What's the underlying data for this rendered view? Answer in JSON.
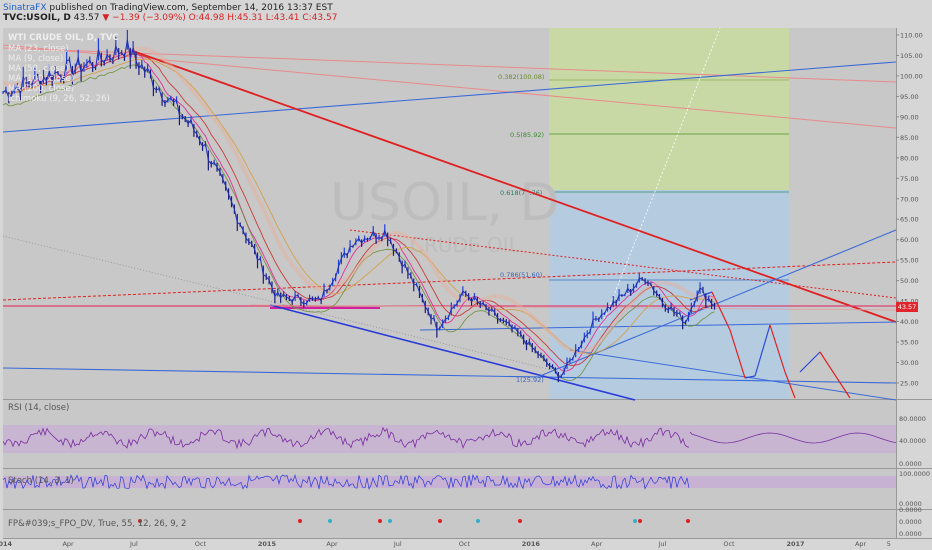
{
  "header": {
    "publisher": "SinatraFX",
    "published_text": "published on TradingView.com, September 14, 2016 13:37 EST",
    "symbol_line": "TVC:USOIL, D",
    "last": "43.57",
    "change": "▼ −1.39 (−3.09%)",
    "open": "O:44.98",
    "high": "H:45.31",
    "low": "L:43.41",
    "close": "C:43.57"
  },
  "chart": {
    "instrument": "WTI CRUDE OIL, D, TVC",
    "watermark_symbol": "USOIL, D",
    "watermark_name": "CRUDE OIL",
    "legend": [
      "MA (23, close)",
      "MA (9, close)",
      "MA (50, close)",
      "MA (100, close)",
      "MA (200, close)",
      "Ichimoku (9, 26, 52, 26)"
    ],
    "price_badge": "43.57",
    "fib_labels": [
      "0.382(100.08)",
      "0.5(85.92)",
      "0.618(71.76)",
      "0.786(51.60)",
      "1(25.92)"
    ]
  },
  "panes": {
    "rsi": {
      "label": "RSI (14, close)",
      "ticks": [
        "80.0000",
        "40.0000",
        "0.0000"
      ]
    },
    "stoch": {
      "label": "Stoch (14, 3, 1)",
      "ticks": [
        "100.0000",
        "0.0000"
      ]
    },
    "fp": {
      "label": "FP&#039;s_FPO_DV, True, 55, 12, 26, 9, 2",
      "ticks": [
        "0.0000",
        "0.0000",
        "0.0000"
      ]
    }
  },
  "colors": {
    "up": "#1f3fd8",
    "down": "#1a1a7a",
    "fib_zone_top": "#cfe0a8",
    "fib_zone_bottom": "#b6cfe6",
    "trend_red": "#e02020"
  },
  "chart_data": {
    "type": "line",
    "title": "WTI CRUDE OIL, D, TVC",
    "ylabel": "",
    "y_ticks": [
      110,
      105,
      100,
      95,
      90,
      85,
      80,
      75,
      70,
      65,
      60,
      55,
      50,
      45,
      40,
      35,
      30,
      25
    ],
    "x_ticks": [
      "2014",
      "Apr",
      "Jul",
      "Oct",
      "2015",
      "Apr",
      "Jul",
      "Oct",
      "2016",
      "Apr",
      "Jul",
      "Oct",
      "2017",
      "Apr",
      "5"
    ],
    "ylim": [
      22,
      111
    ],
    "series": [
      {
        "x": [
          "2014-01",
          "2014-03",
          "2014-05",
          "2014-06-20",
          "2014-08",
          "2014-10",
          "2014-12",
          "2015-01-15",
          "2015-03-15",
          "2015-05",
          "2015-06-15",
          "2015-07-15",
          "2015-08-25",
          "2015-10",
          "2015-11",
          "2015-12-15",
          "2016-02-11",
          "2016-04",
          "2016-06-08",
          "2016-07",
          "2016-08-02",
          "2016-08-20",
          "2016-09-14"
        ],
        "values": [
          96,
          100,
          103,
          107,
          98,
          85,
          62,
          46,
          45,
          60,
          62,
          52,
          38.5,
          47,
          43,
          37,
          26.5,
          41,
          51,
          45,
          40,
          48,
          43.57
        ]
      }
    ]
  }
}
